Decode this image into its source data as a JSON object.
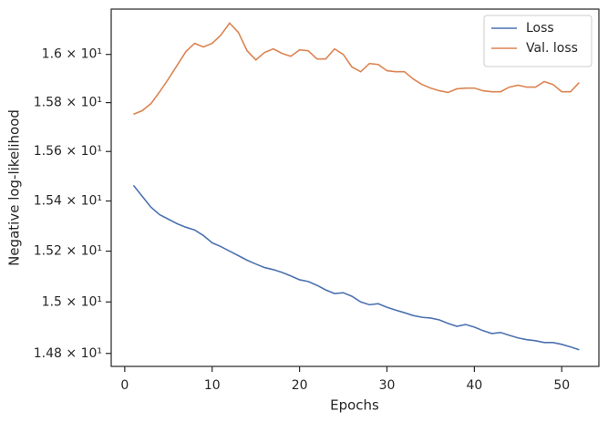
{
  "chart_data": {
    "type": "line",
    "xlabel": "Epochs",
    "ylabel": "Negative log-likelihood",
    "x": [
      1,
      2,
      3,
      4,
      5,
      6,
      7,
      8,
      9,
      10,
      11,
      12,
      13,
      14,
      15,
      16,
      17,
      18,
      19,
      20,
      21,
      22,
      23,
      24,
      25,
      26,
      27,
      28,
      29,
      30,
      31,
      32,
      33,
      34,
      35,
      36,
      37,
      38,
      39,
      40,
      41,
      42,
      43,
      44,
      45,
      46,
      47,
      48,
      49,
      50,
      51,
      52
    ],
    "series": [
      {
        "name": "Loss",
        "color": "#4c72b0",
        "values": [
          15.463,
          15.419,
          15.375,
          15.345,
          15.327,
          15.309,
          15.295,
          15.284,
          15.262,
          15.233,
          15.218,
          15.2,
          15.182,
          15.164,
          15.149,
          15.135,
          15.127,
          15.116,
          15.102,
          15.087,
          15.08,
          15.065,
          15.047,
          15.033,
          15.036,
          15.022,
          15.0,
          14.989,
          14.993,
          14.979,
          14.968,
          14.958,
          14.947,
          14.94,
          14.937,
          14.93,
          14.916,
          14.905,
          14.912,
          14.902,
          14.888,
          14.877,
          14.881,
          14.87,
          14.86,
          14.853,
          14.849,
          14.842,
          14.842,
          14.835,
          14.825,
          14.814
        ]
      },
      {
        "name": "Val. loss",
        "color": "#dd8452",
        "values": [
          15.752,
          15.767,
          15.796,
          15.845,
          15.898,
          15.955,
          16.012,
          16.046,
          16.031,
          16.046,
          16.081,
          16.131,
          16.092,
          16.015,
          15.977,
          16.008,
          16.023,
          16.004,
          15.992,
          16.019,
          16.015,
          15.981,
          15.981,
          16.023,
          16.0,
          15.947,
          15.928,
          15.962,
          15.958,
          15.932,
          15.928,
          15.928,
          15.898,
          15.875,
          15.86,
          15.849,
          15.842,
          15.857,
          15.86,
          15.86,
          15.849,
          15.845,
          15.845,
          15.864,
          15.872,
          15.864,
          15.864,
          15.887,
          15.875,
          15.845,
          15.845,
          15.883
        ]
      }
    ],
    "xlim": [
      -1.55,
      54.25
    ],
    "xticks": [
      0,
      10,
      20,
      30,
      40,
      50
    ],
    "ylim": [
      14.75,
      16.19
    ],
    "yscale": "log",
    "yticks": [
      {
        "value": 14.8,
        "label": "1.48 × 10¹"
      },
      {
        "value": 15.0,
        "label": "1.5 × 10¹"
      },
      {
        "value": 15.2,
        "label": "1.52 × 10¹"
      },
      {
        "value": 15.4,
        "label": "1.54 × 10¹"
      },
      {
        "value": 15.6,
        "label": "1.56 × 10¹"
      },
      {
        "value": 15.8,
        "label": "1.58 × 10¹"
      },
      {
        "value": 16.0,
        "label": "1.6 × 10¹"
      }
    ],
    "legend": "upper right",
    "grid": false
  }
}
